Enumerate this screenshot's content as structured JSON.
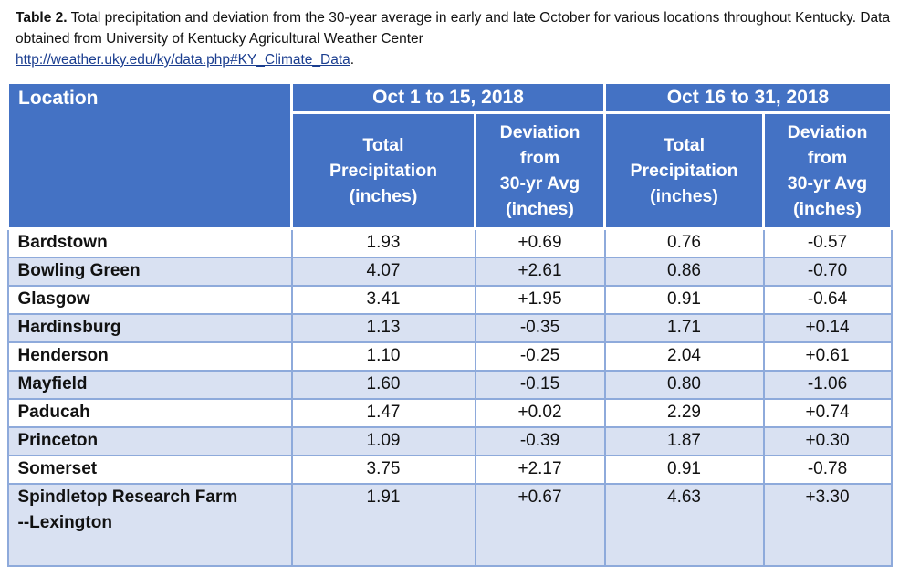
{
  "caption": {
    "label": "Table 2.",
    "text": " Total precipitation and deviation from the 30-year average in early and late October for various locations throughout Kentucky. Data obtained from University of Kentucky Agricultural Weather Center ",
    "link": "http://weather.uky.edu/ky/data.php#KY_Climate_Data",
    "tail": "."
  },
  "table": {
    "location_header": "Location",
    "period1": "Oct 1 to 15, 2018",
    "period2": "Oct 16 to 31, 2018",
    "sub_total": [
      "Total",
      "Precipitation",
      "(inches)"
    ],
    "sub_dev": [
      "Deviation",
      "from",
      "30-yr Avg",
      "(inches)"
    ],
    "rows": [
      {
        "location": "Bardstown",
        "p1_total": "1.93",
        "p1_dev": "+0.69",
        "p2_total": "0.76",
        "p2_dev": "-0.57"
      },
      {
        "location": "Bowling Green",
        "p1_total": "4.07",
        "p1_dev": "+2.61",
        "p2_total": "0.86",
        "p2_dev": "-0.70"
      },
      {
        "location": "Glasgow",
        "p1_total": "3.41",
        "p1_dev": "+1.95",
        "p2_total": "0.91",
        "p2_dev": "-0.64"
      },
      {
        "location": "Hardinsburg",
        "p1_total": "1.13",
        "p1_dev": "-0.35",
        "p2_total": "1.71",
        "p2_dev": "+0.14"
      },
      {
        "location": "Henderson",
        "p1_total": "1.10",
        "p1_dev": "-0.25",
        "p2_total": "2.04",
        "p2_dev": "+0.61"
      },
      {
        "location": "Mayfield",
        "p1_total": "1.60",
        "p1_dev": "-0.15",
        "p2_total": "0.80",
        "p2_dev": "-1.06"
      },
      {
        "location": "Paducah",
        "p1_total": "1.47",
        "p1_dev": "+0.02",
        "p2_total": "2.29",
        "p2_dev": "+0.74"
      },
      {
        "location": "Princeton",
        "p1_total": "1.09",
        "p1_dev": "-0.39",
        "p2_total": "1.87",
        "p2_dev": "+0.30"
      },
      {
        "location": "Somerset",
        "p1_total": "3.75",
        "p1_dev": "+2.17",
        "p2_total": "0.91",
        "p2_dev": "-0.78"
      },
      {
        "location_line1": "Spindletop Research Farm",
        "location_line2": "--Lexington",
        "p1_total": "1.91",
        "p1_dev": "+0.67",
        "p2_total": "4.63",
        "p2_dev": "+3.30"
      }
    ]
  },
  "colors": {
    "header_bg": "#4472c4",
    "band": "#d9e1f2",
    "grid": "#8eaadb"
  }
}
